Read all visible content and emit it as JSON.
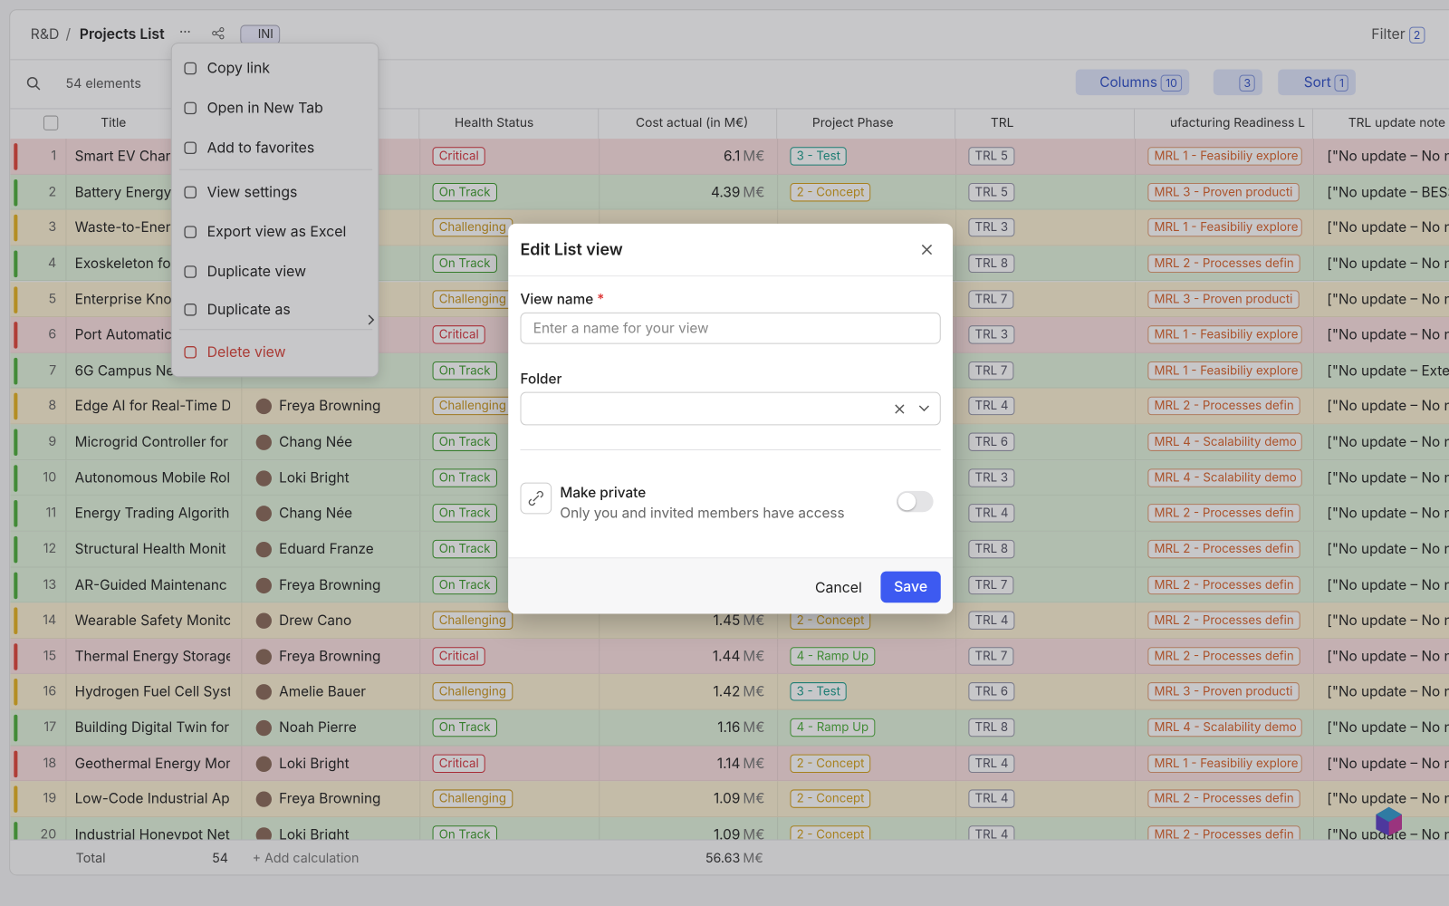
{
  "header": {
    "breadcrumb_parent": "R&D",
    "separator": "/",
    "title": "Projects List",
    "more": "···",
    "badge": "INI",
    "filter": "Filter",
    "filter_count": 2
  },
  "toolbar": {
    "count": "54 elements",
    "columns": "Columns",
    "columns_count": 10,
    "palette_count": 3,
    "sort": "Sort",
    "sort_count": 1
  },
  "table": {
    "columns": [
      "Title",
      null,
      "Health Status",
      "Cost actual (in M€)",
      "Project Phase",
      "TRL",
      "ufacturing Readiness L",
      "TRL update note"
    ],
    "cost_unit": "M€",
    "rows": [
      {
        "num": 1,
        "title": "Smart EV Char",
        "owner": null,
        "health": "Critical",
        "cost": 6.1,
        "phase": "3 - Test",
        "trl": "TRL 5",
        "mrl": "MRL 1 - Feasibiliy explore",
        "note": "[\"No update – No n"
      },
      {
        "num": 2,
        "title": "Battery Energy",
        "owner": null,
        "health": "On Track",
        "cost": 4.39,
        "phase": "2 - Concept",
        "trl": "TRL 5",
        "mrl": "MRL 3 - Proven producti",
        "note": "[\"No update – BESS"
      },
      {
        "num": 3,
        "title": "Waste-to-Ener",
        "owner": null,
        "health": "Challenging",
        "cost": null,
        "phase": null,
        "trl": "TRL 3",
        "mrl": "MRL 1 - Feasibiliy explore",
        "note": "[\"No update – No n"
      },
      {
        "num": 4,
        "title": "Exoskeleton fo",
        "owner": null,
        "health": "On Track",
        "cost": null,
        "phase": null,
        "trl": "TRL 8",
        "mrl": "MRL 2 - Processes defin",
        "note": "[\"No update – No n"
      },
      {
        "num": 5,
        "title": "Enterprise Kno",
        "owner": null,
        "health": "Challenging",
        "cost": null,
        "phase": null,
        "trl": "TRL 7",
        "mrl": "MRL 3 - Proven producti",
        "note": "[\"No update – No n"
      },
      {
        "num": 6,
        "title": "Port Automatic",
        "owner": null,
        "health": "Critical",
        "cost": null,
        "phase": null,
        "trl": "TRL 3",
        "mrl": "MRL 1 - Feasibiliy explore",
        "note": "[\"No update – No n"
      },
      {
        "num": 7,
        "title": "6G Campus Ne",
        "owner": null,
        "health": "On Track",
        "cost": null,
        "phase": null,
        "trl": "TRL 7",
        "mrl": "MRL 1 - Feasibiliy explore",
        "note": "[\"No update – Exte"
      },
      {
        "num": 8,
        "title": "Edge AI for Real-Time D",
        "owner": "Freya Browning",
        "health": "Challenging",
        "cost": null,
        "phase": null,
        "trl": "TRL 4",
        "mrl": "MRL 2 - Processes defin",
        "note": "[\"No update – No n"
      },
      {
        "num": 9,
        "title": "Microgrid Controller for",
        "owner": "Chang Née",
        "health": "On Track",
        "cost": null,
        "phase": null,
        "trl": "TRL 6",
        "mrl": "MRL 4 - Scalability demo",
        "note": "[\"No update – No n"
      },
      {
        "num": 10,
        "title": "Autonomous Mobile Rol",
        "owner": "Loki Bright",
        "health": "On Track",
        "cost": null,
        "phase": null,
        "trl": "TRL 3",
        "mrl": "MRL 4 - Scalability demo",
        "note": "[\"No update – No n"
      },
      {
        "num": 11,
        "title": "Energy Trading Algorith",
        "owner": "Chang Née",
        "health": "On Track",
        "cost": null,
        "phase": null,
        "trl": "TRL 4",
        "mrl": "MRL 2 - Processes defin",
        "note": "[\"No update – No n"
      },
      {
        "num": 12,
        "title": "Structural Health Monit",
        "owner": "Eduard Franze",
        "health": "On Track",
        "cost": null,
        "phase": null,
        "trl": "TRL 8",
        "mrl": "MRL 2 - Processes defin",
        "note": "[\"No update – No n"
      },
      {
        "num": 13,
        "title": "AR-Guided Maintenanc",
        "owner": "Freya Browning",
        "health": "On Track",
        "cost": null,
        "phase": null,
        "trl": "TRL 7",
        "mrl": "MRL 2 - Processes defin",
        "note": "[\"No update – No n"
      },
      {
        "num": 14,
        "title": "Wearable Safety Monitc",
        "owner": "Drew Cano",
        "health": "Challenging",
        "cost": 1.45,
        "phase": "2 - Concept",
        "trl": "TRL 4",
        "mrl": "MRL 2 - Processes defin",
        "note": "[\"No update – No n"
      },
      {
        "num": 15,
        "title": "Thermal Energy Storage",
        "owner": "Freya Browning",
        "health": "Critical",
        "cost": 1.44,
        "phase": "4 - Ramp Up",
        "trl": "TRL 7",
        "mrl": "MRL 2 - Processes defin",
        "note": "[\"No update – No n"
      },
      {
        "num": 16,
        "title": "Hydrogen Fuel Cell Syst",
        "owner": "Amelie Bauer",
        "health": "Challenging",
        "cost": 1.42,
        "phase": "3 - Test",
        "trl": "TRL 6",
        "mrl": "MRL 3 - Proven producti",
        "note": "[\"No update – No n"
      },
      {
        "num": 17,
        "title": "Building Digital Twin for",
        "owner": "Noah Pierre",
        "health": "On Track",
        "cost": 1.16,
        "phase": "4 - Ramp Up",
        "trl": "TRL 8",
        "mrl": "MRL 4 - Scalability demo",
        "note": "[\"No update – No n"
      },
      {
        "num": 18,
        "title": "Geothermal Energy Mor",
        "owner": "Loki Bright",
        "health": "Critical",
        "cost": 1.14,
        "phase": "2 - Concept",
        "trl": "TRL 4",
        "mrl": "MRL 1 - Feasibiliy explore",
        "note": "[\"No update – No n"
      },
      {
        "num": 19,
        "title": "Low-Code Industrial Ap",
        "owner": "Freya Browning",
        "health": "Challenging",
        "cost": 1.09,
        "phase": "2 - Concept",
        "trl": "TRL 4",
        "mrl": "MRL 2 - Processes defin",
        "note": "[\"No update – No n"
      },
      {
        "num": 20,
        "title": "Industrial Honeypot Net",
        "owner": "Loki Bright",
        "health": "On Track",
        "cost": 1.09,
        "phase": "2 - Concept",
        "trl": "TRL 4",
        "mrl": "MRL 2 - Processes defin",
        "note": "[\"No update – No n"
      }
    ],
    "footer": {
      "label": "Total",
      "count": 54,
      "add": "Add calculation",
      "cost_total": 56.63
    }
  },
  "menu": {
    "items": [
      "Copy link",
      "Open in New Tab",
      "Add to favorites",
      "View settings",
      "Export view as Excel",
      "Duplicate view",
      "Duplicate as",
      "Delete view"
    ]
  },
  "modal": {
    "title": "Edit List view",
    "name_label": "View name",
    "required": "*",
    "name_placeholder": "Enter a name for your view",
    "folder_label": "Folder",
    "private_title": "Make private",
    "private_desc": "Only you and invited members have access",
    "cancel": "Cancel",
    "save": "Save"
  }
}
